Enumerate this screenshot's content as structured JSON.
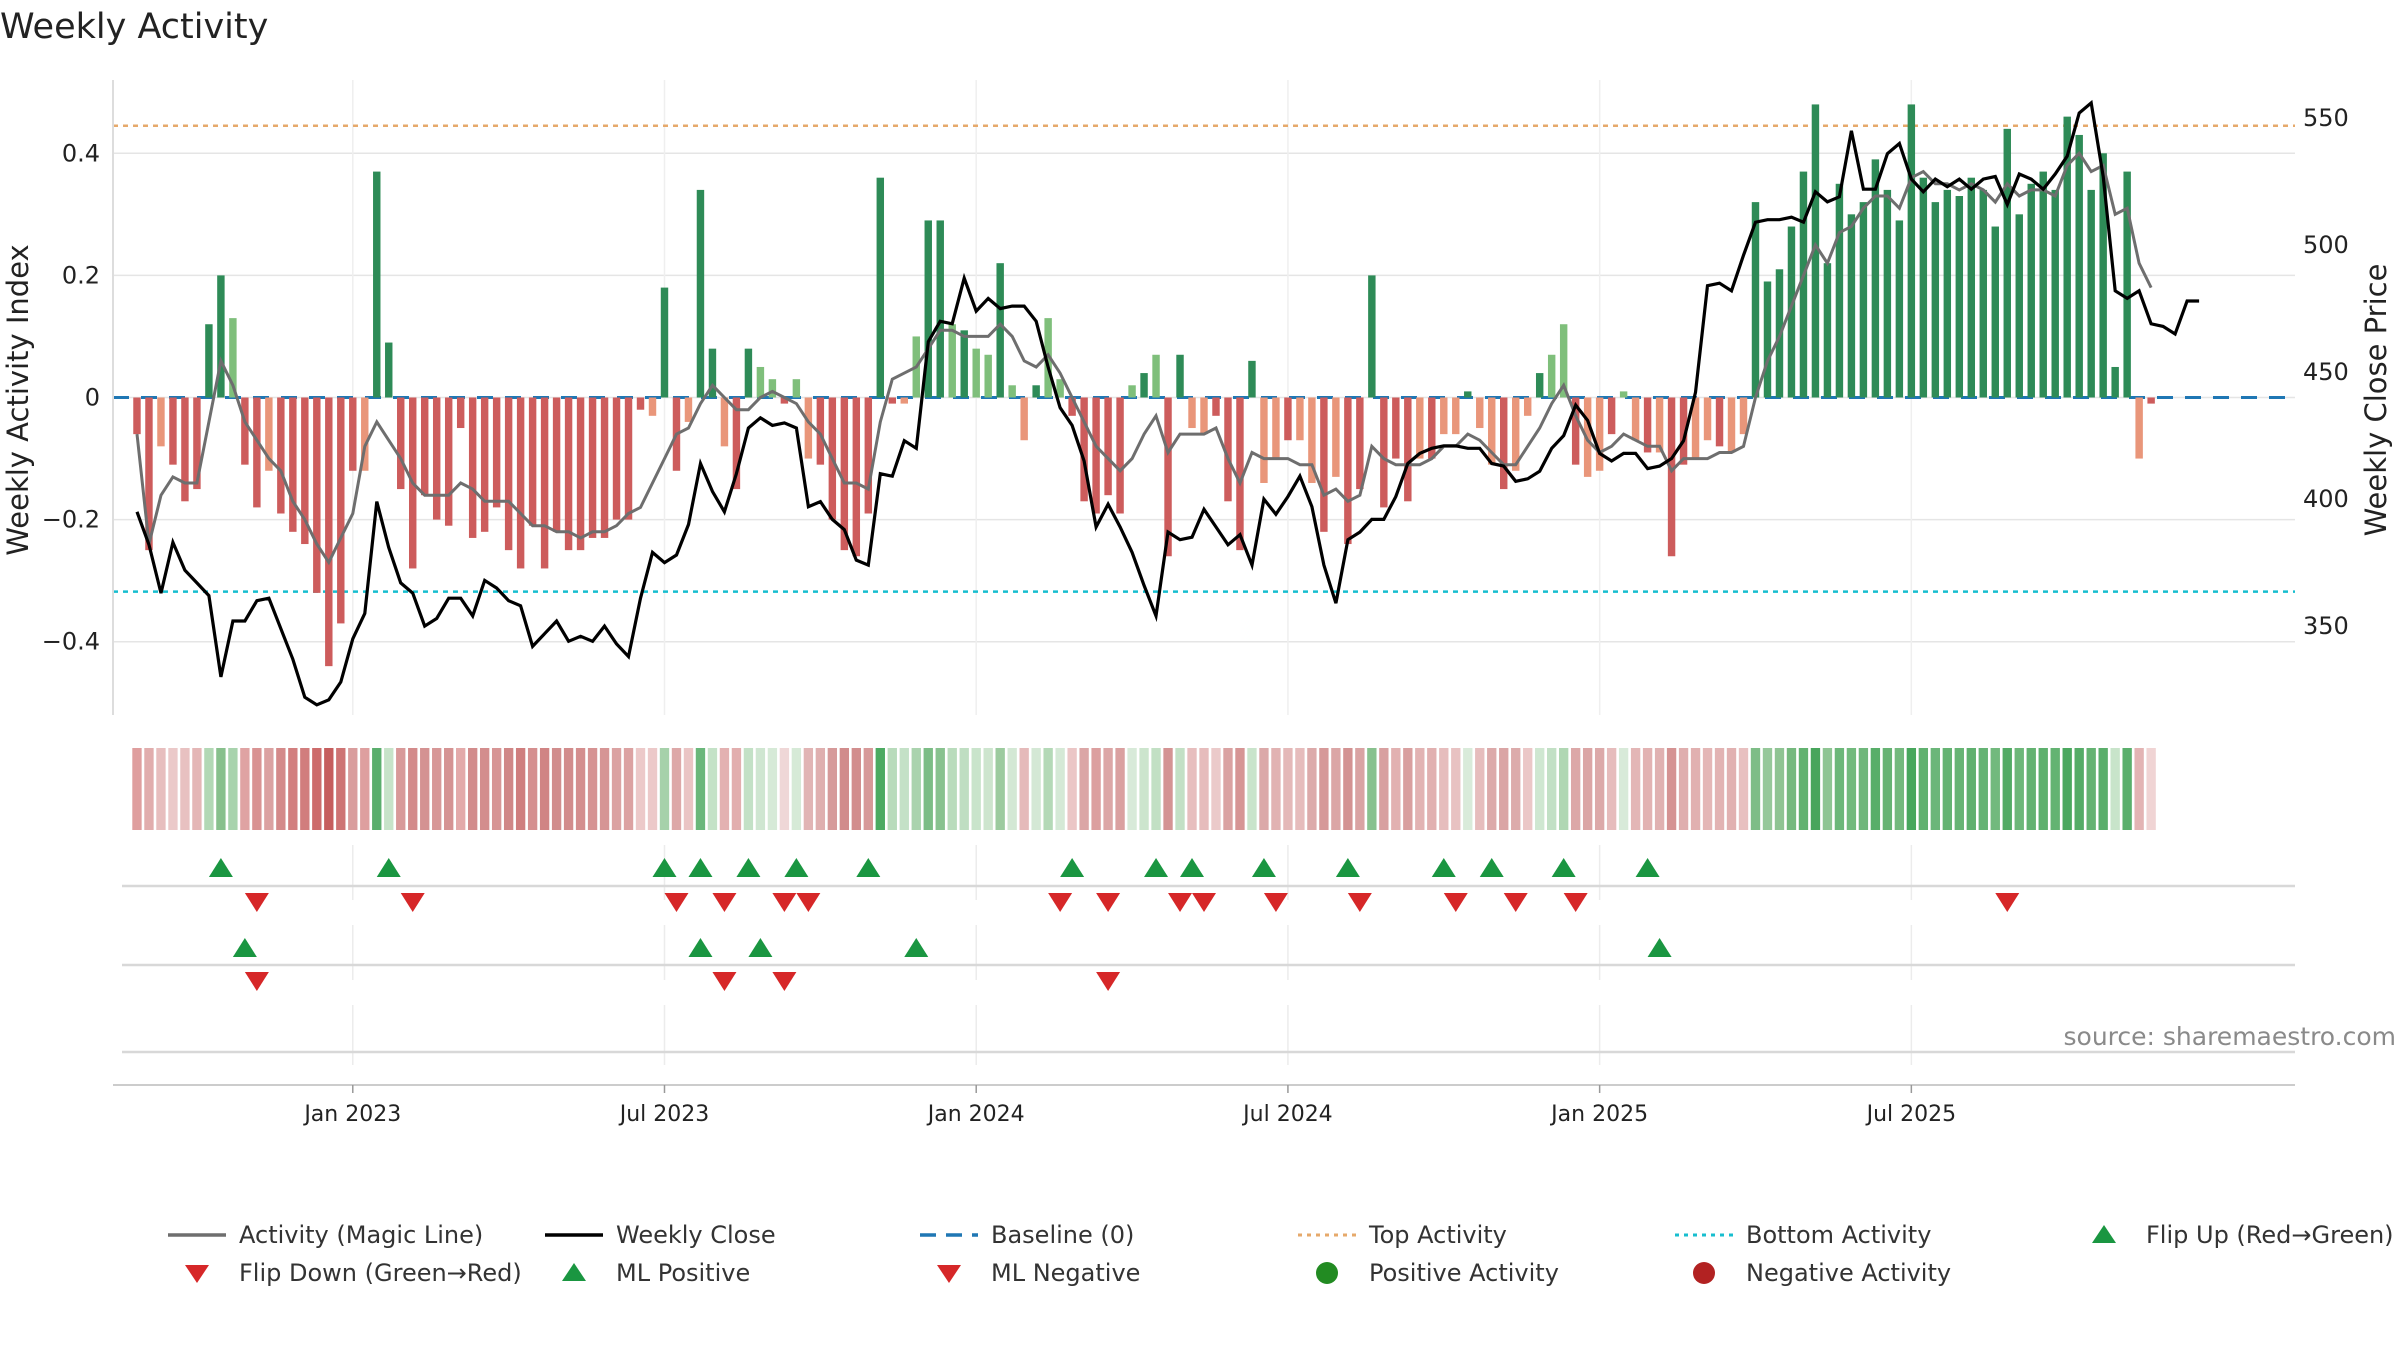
{
  "title": "Weekly Activity",
  "source": "source: sharemaestro.com",
  "colors": {
    "pos_strong": "#2e8b57",
    "pos_light": "#7fbf7b",
    "neg_strong": "#cd5c5c",
    "neg_light": "#e9967a",
    "magic_line": "#6e6e6e",
    "close_line": "#000000",
    "baseline": "#1f77b4",
    "top_line": "#e6a96b",
    "bottom_line": "#17becf",
    "flip_up": "#1a9641",
    "flip_down": "#d62728",
    "pos_dot": "#228b22",
    "neg_dot": "#b22222",
    "grid": "#e5e5e5"
  },
  "chart_data": {
    "type": "bar",
    "title": "Weekly Activity",
    "ylabel_left": "Weekly Activity Index",
    "ylabel_right": "Weekly Close Price",
    "ylim_left": [
      -0.52,
      0.52
    ],
    "ylim_right": [
      315,
      565
    ],
    "yticks_left": [
      {
        "v": 0.4,
        "label": "0.4"
      },
      {
        "v": 0.2,
        "label": "0.2"
      },
      {
        "v": 0,
        "label": "0"
      },
      {
        "v": -0.2,
        "label": "−0.2"
      },
      {
        "v": -0.4,
        "label": "−0.4"
      }
    ],
    "yticks_right": [
      {
        "v": 550,
        "label": "550"
      },
      {
        "v": 500,
        "label": "500"
      },
      {
        "v": 450,
        "label": "450"
      },
      {
        "v": 400,
        "label": "400"
      },
      {
        "v": 350,
        "label": "350"
      }
    ],
    "x_range_weeks": [
      -20,
      162
    ],
    "xticks": [
      {
        "week": 0,
        "label": "Jan 2023"
      },
      {
        "week": 26,
        "label": "Jul 2023"
      },
      {
        "week": 52,
        "label": "Jan 2024"
      },
      {
        "week": 78,
        "label": "Jul 2024"
      },
      {
        "week": 104,
        "label": "Jan 2025"
      },
      {
        "week": 130,
        "label": "Jul 2025"
      }
    ],
    "top_activity": 0.445,
    "bottom_activity": -0.318,
    "baseline": 0,
    "first_week": -18,
    "activity": [
      -0.06,
      -0.25,
      -0.08,
      -0.11,
      -0.17,
      -0.15,
      0.12,
      0.2,
      0.13,
      -0.11,
      -0.18,
      -0.12,
      -0.19,
      -0.22,
      -0.24,
      -0.32,
      -0.44,
      -0.37,
      -0.12,
      -0.12,
      0.37,
      0.09,
      -0.15,
      -0.28,
      -0.16,
      -0.2,
      -0.21,
      -0.05,
      -0.23,
      -0.22,
      -0.18,
      -0.25,
      -0.28,
      -0.21,
      -0.28,
      -0.22,
      -0.25,
      -0.25,
      -0.23,
      -0.23,
      -0.2,
      -0.2,
      -0.02,
      -0.03,
      0.18,
      -0.12,
      -0.04,
      0.34,
      0.08,
      -0.08,
      -0.15,
      0.08,
      0.05,
      0.03,
      -0.01,
      0.03,
      -0.1,
      -0.11,
      -0.2,
      -0.25,
      -0.26,
      -0.19,
      0.36,
      -0.01,
      -0.01,
      0.1,
      0.29,
      0.29,
      0.12,
      0.11,
      0.08,
      0.07,
      0.22,
      0.02,
      -0.07,
      0.02,
      0.13,
      0.03,
      -0.03,
      -0.17,
      -0.19,
      -0.16,
      -0.19,
      0.02,
      0.04,
      0.07,
      -0.26,
      0.07,
      -0.05,
      -0.06,
      -0.03,
      -0.17,
      -0.25,
      0.06,
      -0.14,
      -0.1,
      -0.07,
      -0.07,
      -0.14,
      -0.22,
      -0.13,
      -0.24,
      -0.15,
      0.2,
      -0.18,
      -0.1,
      -0.17,
      -0.1,
      -0.1,
      -0.06,
      -0.06,
      0.01,
      -0.05,
      -0.11,
      -0.15,
      -0.12,
      -0.03,
      0.04,
      0.07,
      0.12,
      -0.11,
      -0.13,
      -0.12,
      -0.06,
      0.01,
      -0.07,
      -0.09,
      -0.09,
      -0.26,
      -0.11,
      -0.1,
      -0.07,
      -0.08,
      -0.09,
      -0.06,
      0.32,
      0.19,
      0.21,
      0.28,
      0.37,
      0.48,
      0.22,
      0.35,
      0.3,
      0.32,
      0.39,
      0.34,
      0.29,
      0.48,
      0.36,
      0.32,
      0.34,
      0.33,
      0.36,
      0.34,
      0.28,
      0.44,
      0.3,
      0.35,
      0.37,
      0.34,
      0.46,
      0.43,
      0.34,
      0.4,
      0.05,
      0.37,
      -0.1,
      -0.01
    ],
    "activity_magic_line": [
      -0.06,
      -0.24,
      -0.16,
      -0.13,
      -0.14,
      -0.14,
      -0.04,
      0.06,
      0.02,
      -0.04,
      -0.07,
      -0.1,
      -0.12,
      -0.17,
      -0.2,
      -0.24,
      -0.27,
      -0.23,
      -0.19,
      -0.08,
      -0.04,
      -0.07,
      -0.1,
      -0.14,
      -0.16,
      -0.16,
      -0.16,
      -0.14,
      -0.15,
      -0.17,
      -0.17,
      -0.17,
      -0.19,
      -0.21,
      -0.21,
      -0.22,
      -0.22,
      -0.23,
      -0.22,
      -0.22,
      -0.21,
      -0.19,
      -0.18,
      -0.14,
      -0.1,
      -0.06,
      -0.05,
      -0.01,
      0.02,
      0.0,
      -0.02,
      -0.02,
      0.0,
      0.01,
      0.0,
      -0.01,
      -0.04,
      -0.06,
      -0.1,
      -0.14,
      -0.14,
      -0.15,
      -0.04,
      0.03,
      0.04,
      0.05,
      0.08,
      0.11,
      0.11,
      0.1,
      0.1,
      0.1,
      0.12,
      0.1,
      0.06,
      0.05,
      0.07,
      0.04,
      0.0,
      -0.04,
      -0.08,
      -0.1,
      -0.12,
      -0.1,
      -0.06,
      -0.03,
      -0.09,
      -0.06,
      -0.06,
      -0.06,
      -0.05,
      -0.1,
      -0.14,
      -0.09,
      -0.1,
      -0.1,
      -0.1,
      -0.11,
      -0.11,
      -0.16,
      -0.15,
      -0.17,
      -0.16,
      -0.08,
      -0.1,
      -0.11,
      -0.11,
      -0.11,
      -0.1,
      -0.08,
      -0.08,
      -0.06,
      -0.07,
      -0.09,
      -0.11,
      -0.11,
      -0.08,
      -0.05,
      -0.01,
      0.02,
      -0.03,
      -0.07,
      -0.09,
      -0.08,
      -0.06,
      -0.07,
      -0.08,
      -0.08,
      -0.12,
      -0.1,
      -0.1,
      -0.1,
      -0.09,
      -0.09,
      -0.08,
      0.0,
      0.06,
      0.1,
      0.15,
      0.2,
      0.25,
      0.22,
      0.27,
      0.28,
      0.31,
      0.33,
      0.33,
      0.31,
      0.36,
      0.37,
      0.35,
      0.35,
      0.34,
      0.35,
      0.34,
      0.32,
      0.35,
      0.33,
      0.34,
      0.34,
      0.33,
      0.38,
      0.4,
      0.37,
      0.38,
      0.3,
      0.31,
      0.22,
      0.18
    ],
    "weekly_close": [
      395,
      382,
      363,
      383,
      372,
      367,
      362,
      330,
      352,
      352,
      360,
      361,
      349,
      337,
      322,
      319,
      321,
      328,
      345,
      355,
      399,
      381,
      367,
      363,
      350,
      353,
      361,
      361,
      354,
      368,
      365,
      360,
      358,
      342,
      347,
      352,
      344,
      346,
      344,
      350,
      343,
      338,
      361,
      379,
      375,
      378,
      390,
      414,
      403,
      395,
      410,
      428,
      432,
      429,
      430,
      428,
      397,
      399,
      392,
      388,
      376,
      374,
      410,
      409,
      423,
      420,
      462,
      470,
      469,
      487,
      474,
      479,
      475,
      476,
      476,
      470,
      452,
      436,
      429,
      415,
      389,
      398,
      389,
      379,
      366,
      354,
      387,
      384,
      385,
      396,
      389,
      382,
      386,
      374,
      400,
      394,
      401,
      409,
      397,
      374,
      359,
      384,
      387,
      392,
      392,
      401,
      414,
      418,
      420,
      421,
      421,
      420,
      420,
      414,
      413,
      407,
      408,
      411,
      420,
      425,
      437,
      431,
      418,
      415,
      418,
      418,
      412,
      413,
      416,
      423,
      442,
      484,
      485,
      482,
      496,
      509,
      510,
      510,
      511,
      509,
      521,
      517,
      519,
      545,
      522,
      522,
      536,
      540,
      526,
      521,
      526,
      523,
      526,
      522,
      526,
      527,
      516,
      528,
      526,
      522,
      528,
      535,
      552,
      556,
      527,
      482,
      479,
      482,
      469,
      468,
      465,
      478,
      478
    ]
  },
  "strip_colors": [
    "#df9e9e",
    "#e1adad",
    "#e7bebe",
    "#ebc9c9",
    "#e8c1c1",
    "#e4b6b6",
    "#b2d8b5",
    "#88c08d",
    "#a8d3ad",
    "#dfa3a3",
    "#d99393",
    "#dba2a2",
    "#d48a8a",
    "#d27f7f",
    "#d17d7d",
    "#cd6b6b",
    "#c65e5e",
    "#ce7474",
    "#d99d9d",
    "#de9f9f",
    "#5aae6d",
    "#c7e3c9",
    "#d89999",
    "#d38b8b",
    "#d49292",
    "#d79797",
    "#d59393",
    "#e3aaaa",
    "#d28c8c",
    "#d38d8d",
    "#d79595",
    "#d08787",
    "#cf7e7e",
    "#d58f8f",
    "#d08484",
    "#d18d8d",
    "#d28c8c",
    "#d48e8e",
    "#d69393",
    "#d69595",
    "#dba2a2",
    "#dca2a2",
    "#ecc9c9",
    "#ecc9c9",
    "#a6d1aa",
    "#dda8a8",
    "#eac5c5",
    "#6ab77b",
    "#c4e2c7",
    "#e3b1b1",
    "#e2aeae",
    "#c3e1c6",
    "#cfe6d1",
    "#d6ead7",
    "#efd7d7",
    "#d6ead7",
    "#e1b4b4",
    "#dfafaf",
    "#d69a9a",
    "#d18c8c",
    "#d28e8e",
    "#d79999",
    "#4caa62",
    "#b8dbbb",
    "#c4e1c7",
    "#aad3ae",
    "#7cbd86",
    "#88c28f",
    "#b9dcbc",
    "#bfdec2",
    "#c9e4cb",
    "#cde5ce",
    "#9ccb9f",
    "#d3e8d4",
    "#e5baba",
    "#d4e8d5",
    "#b4d9b7",
    "#d5e9d6",
    "#ebc6c6",
    "#dba6a6",
    "#dc9f9f",
    "#dca6a6",
    "#daa0a0",
    "#d8ead9",
    "#cce5cd",
    "#c2e0c4",
    "#d49393",
    "#c3e0c5",
    "#e7bebe",
    "#e6bcbc",
    "#ebcaca",
    "#daa2a2",
    "#d69595",
    "#c9e4cb",
    "#dba9a9",
    "#e1b2b2",
    "#e4b8b8",
    "#e6bcbc",
    "#dcaaaa",
    "#d69999",
    "#dba6a6",
    "#d39292",
    "#d9a3a3",
    "#88c18e",
    "#d8a0a0",
    "#e2b1b1",
    "#d99f9f",
    "#e2b3b3",
    "#e1b0b0",
    "#e6bdbd",
    "#e8c2c2",
    "#d9ebda",
    "#e6bdbd",
    "#dcaaaa",
    "#daa5a5",
    "#dcabab",
    "#ebc7c7",
    "#cfe7d1",
    "#c2e0c5",
    "#b0d7b3",
    "#dca8a8",
    "#dba5a5",
    "#dca9a9",
    "#e6bcbc",
    "#d8ead9",
    "#e3b6b6",
    "#e2b2b2",
    "#e0b1b1",
    "#d59393",
    "#dfaeae",
    "#e1b0b0",
    "#e4b6b6",
    "#e2b3b3",
    "#e1b1b1",
    "#e8c0c0",
    "#7ebd87",
    "#96c89a",
    "#8fc493",
    "#75b97e",
    "#62b270",
    "#48a55c",
    "#8ec593",
    "#6cb779",
    "#72ba7d",
    "#6fb77b",
    "#58ae69",
    "#66b373",
    "#73b97d",
    "#48a75d",
    "#60b16f",
    "#6bb679",
    "#64b372",
    "#67b474",
    "#5fb06e",
    "#65b374",
    "#72b97d",
    "#53ab65",
    "#6db779",
    "#63b271",
    "#5db06d",
    "#63b372",
    "#4ba85f",
    "#55ac67",
    "#64b372",
    "#5aae6b",
    "#c8e4ca",
    "#5aaf6c",
    "#e3b4b4",
    "#f0d4d4"
  ],
  "markers": {
    "flip_up": [
      -11,
      3,
      26,
      29,
      33,
      37,
      43,
      60,
      67,
      70,
      76,
      83,
      91,
      95,
      101,
      108
    ],
    "flip_down": [
      -8,
      5,
      27,
      31,
      36,
      38,
      59,
      63,
      69,
      71,
      77,
      84,
      92,
      97,
      102,
      138
    ],
    "ml_positive": [
      -9,
      29,
      34,
      47,
      109
    ],
    "ml_negative": [
      -8,
      31,
      36,
      63
    ]
  },
  "legend": [
    {
      "key": "magic",
      "label": "Activity (Magic Line)",
      "shape": "line"
    },
    {
      "key": "close",
      "label": "Weekly Close",
      "shape": "line"
    },
    {
      "key": "baseline",
      "label": "Baseline (0)",
      "shape": "dash"
    },
    {
      "key": "top",
      "label": "Top Activity",
      "shape": "dots"
    },
    {
      "key": "bottom",
      "label": "Bottom Activity",
      "shape": "dots"
    },
    {
      "key": "flipup",
      "label": "Flip Up (Red→Green)",
      "shape": "triangle-up"
    },
    {
      "key": "flipdown",
      "label": "Flip Down (Green→Red)",
      "shape": "triangle-down"
    },
    {
      "key": "mlpos",
      "label": "ML Positive",
      "shape": "triangle-up"
    },
    {
      "key": "mlneg",
      "label": "ML Negative",
      "shape": "triangle-down"
    },
    {
      "key": "posact",
      "label": "Positive Activity",
      "shape": "circle"
    },
    {
      "key": "negact",
      "label": "Negative Activity",
      "shape": "circle"
    }
  ]
}
